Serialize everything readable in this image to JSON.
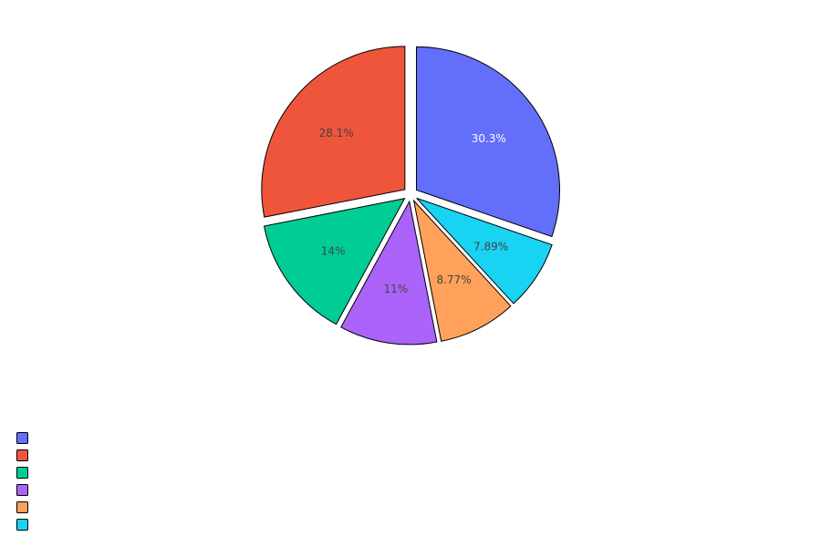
{
  "chart_data": {
    "type": "pie",
    "title": "",
    "slices": [
      {
        "value": 30.3,
        "label": "30.3%",
        "color": "#636efa",
        "label_color": "#ffffff",
        "pulled": true
      },
      {
        "value": 7.89,
        "label": "7.89%",
        "color": "#19d3f3",
        "label_color": "#444444",
        "pulled": true
      },
      {
        "value": 8.77,
        "label": "8.77%",
        "color": "#ffa15a",
        "label_color": "#444444",
        "pulled": true
      },
      {
        "value": 11,
        "label": "11%",
        "color": "#ab63fa",
        "label_color": "#444444",
        "pulled": true
      },
      {
        "value": 14,
        "label": "14%",
        "color": "#00cc96",
        "label_color": "#444444",
        "pulled": true
      },
      {
        "value": 28.1,
        "label": "28.1%",
        "color": "#ef553b",
        "label_color": "#444444",
        "pulled": true
      }
    ],
    "legend": {
      "position": "bottom-left",
      "entries": [
        {
          "color": "#636efa"
        },
        {
          "color": "#ef553b"
        },
        {
          "color": "#00cc96"
        },
        {
          "color": "#ab63fa"
        },
        {
          "color": "#ffa15a"
        },
        {
          "color": "#19d3f3"
        }
      ]
    }
  }
}
